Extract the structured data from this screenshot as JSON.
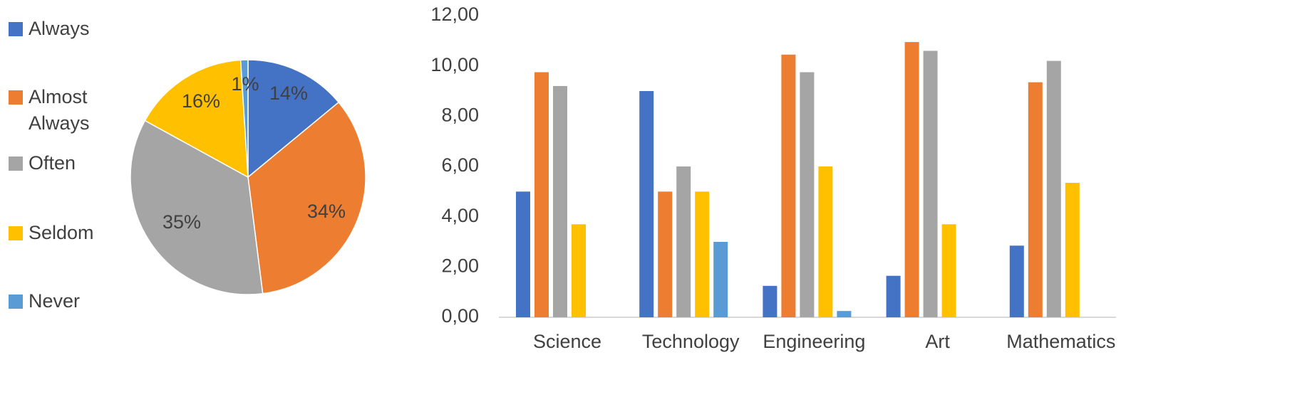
{
  "series_colors": {
    "Always": "#4472c4",
    "Almost Always": "#ed7d31",
    "Often": "#a5a5a5",
    "Seldom": "#ffc000",
    "Never": "#5b9bd5"
  },
  "legend": [
    {
      "key": "Always",
      "label": "Always"
    },
    {
      "key": "Almost Always",
      "label": "Almost Always"
    },
    {
      "key": "Often",
      "label": "Often"
    },
    {
      "key": "Seldom",
      "label": "Seldom"
    },
    {
      "key": "Never",
      "label": "Never"
    }
  ],
  "chart_data": [
    {
      "type": "pie",
      "slices": [
        {
          "name": "Always",
          "value": 14,
          "label": "14%"
        },
        {
          "name": "Almost Always",
          "value": 34,
          "label": "34%"
        },
        {
          "name": "Often",
          "value": 35,
          "label": "35%"
        },
        {
          "name": "Seldom",
          "value": 16,
          "label": "16%"
        },
        {
          "name": "Never",
          "value": 1,
          "label": "1%"
        }
      ],
      "legend_position": "left"
    },
    {
      "type": "bar",
      "categories": [
        "Science",
        "Technology",
        "Engineering",
        "Art",
        "Mathematics"
      ],
      "series": [
        {
          "name": "Always",
          "values": [
            5.0,
            9.0,
            1.25,
            1.65,
            2.85
          ]
        },
        {
          "name": "Almost Always",
          "values": [
            9.75,
            5.0,
            10.45,
            10.95,
            9.35
          ]
        },
        {
          "name": "Often",
          "values": [
            9.2,
            6.0,
            9.75,
            10.6,
            10.2
          ]
        },
        {
          "name": "Seldom",
          "values": [
            3.7,
            5.0,
            6.0,
            3.7,
            5.35
          ]
        },
        {
          "name": "Never",
          "values": [
            0,
            3.0,
            0.25,
            0,
            0
          ]
        }
      ],
      "ylim": [
        0,
        12
      ],
      "yticks": [
        "0,00",
        "2,00",
        "4,00",
        "6,00",
        "8,00",
        "10,00",
        "12,00"
      ],
      "grid": false
    }
  ]
}
